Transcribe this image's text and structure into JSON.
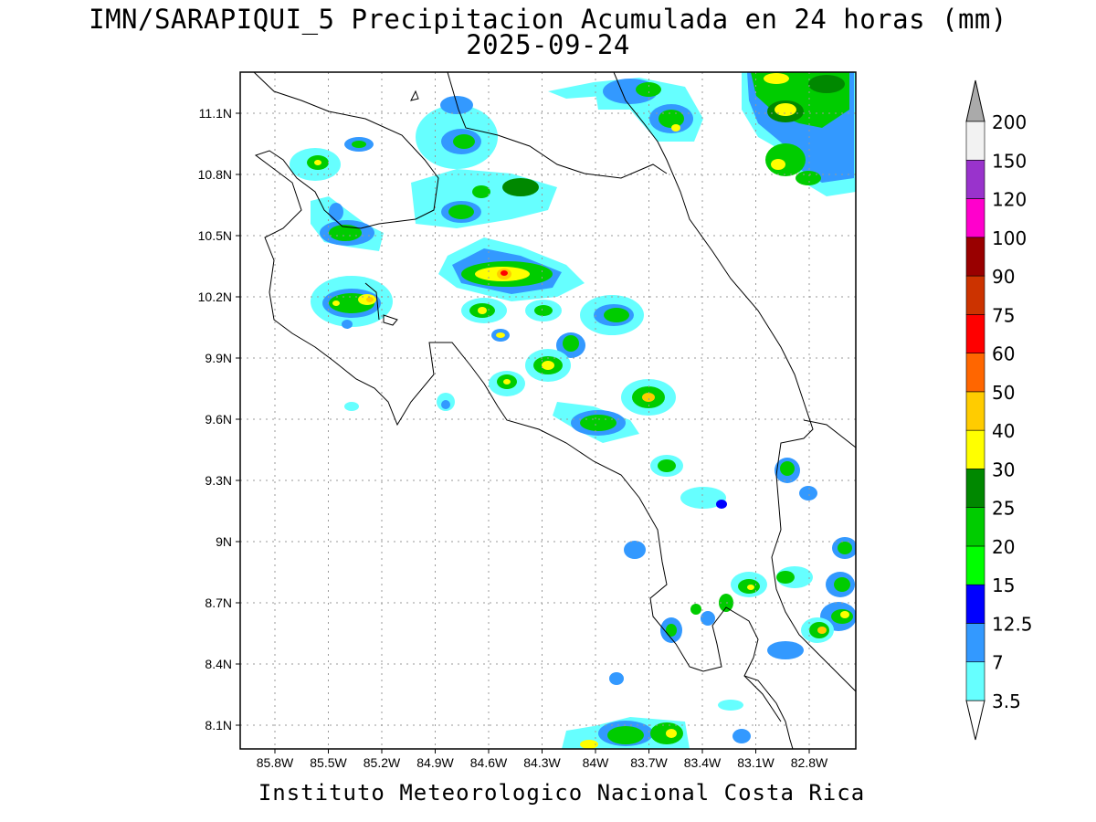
{
  "title_line1": "IMN/SARAPIQUI_5 Precipitacion Acumulada en 24 horas (mm)",
  "title_line2": "2025-09-24",
  "footer": "Instituto Meteorologico Nacional Costa Rica",
  "map": {
    "lon_range": [
      -86.0,
      -83.0
    ],
    "lat_range": [
      8.0,
      11.3
    ],
    "lat_ticks": [
      {
        "value": 11.1,
        "label": "11.1N"
      },
      {
        "value": 10.8,
        "label": "10.8N"
      },
      {
        "value": 10.5,
        "label": "10.5N"
      },
      {
        "value": 10.2,
        "label": "10.2N"
      },
      {
        "value": 9.9,
        "label": "9.9N"
      },
      {
        "value": 9.6,
        "label": "9.6N"
      },
      {
        "value": 9.3,
        "label": "9.3N"
      },
      {
        "value": 9.0,
        "label": "9N"
      },
      {
        "value": 8.7,
        "label": "8.7N"
      },
      {
        "value": 8.4,
        "label": "8.4N"
      },
      {
        "value": 8.1,
        "label": "8.1N"
      }
    ],
    "lon_ticks": [
      {
        "value": -85.8,
        "label": "85.8W"
      },
      {
        "value": -85.5,
        "label": "85.5W"
      },
      {
        "value": -85.2,
        "label": "85.2W"
      },
      {
        "value": -84.9,
        "label": "84.9W"
      },
      {
        "value": -84.6,
        "label": "84.6W"
      },
      {
        "value": -84.3,
        "label": "84.3W"
      },
      {
        "value": -84.0,
        "label": "84W"
      },
      {
        "value": -83.7,
        "label": "83.7W"
      },
      {
        "value": -83.4,
        "label": "83.4W"
      },
      {
        "value": -83.1,
        "label": "83.1W"
      },
      {
        "value": -82.8,
        "label": "82.8W"
      }
    ]
  },
  "colorbar": {
    "levels": [
      {
        "label": "3.5",
        "color": "#66ffff"
      },
      {
        "label": "7",
        "color": "#3399ff"
      },
      {
        "label": "12.5",
        "color": "#0000ff"
      },
      {
        "label": "15",
        "color": "#00ff00"
      },
      {
        "label": "20",
        "color": "#00cc00"
      },
      {
        "label": "25",
        "color": "#008800"
      },
      {
        "label": "30",
        "color": "#ffff00"
      },
      {
        "label": "40",
        "color": "#ffcc00"
      },
      {
        "label": "50",
        "color": "#ff6600"
      },
      {
        "label": "60",
        "color": "#ff0000"
      },
      {
        "label": "75",
        "color": "#cc3300"
      },
      {
        "label": "90",
        "color": "#990000"
      },
      {
        "label": "100",
        "color": "#ff00cc"
      },
      {
        "label": "120",
        "color": "#9933cc"
      },
      {
        "label": "150",
        "color": "#f2f2f2"
      },
      {
        "label": "200",
        "color": "#aaaaaa"
      }
    ]
  }
}
